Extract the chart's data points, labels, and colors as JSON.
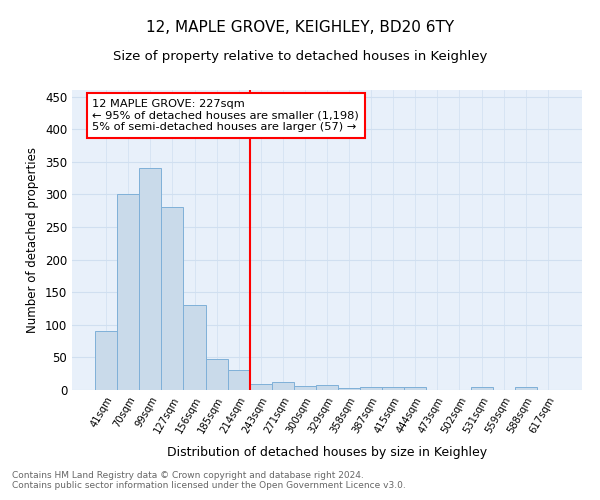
{
  "title": "12, MAPLE GROVE, KEIGHLEY, BD20 6TY",
  "subtitle": "Size of property relative to detached houses in Keighley",
  "xlabel": "Distribution of detached houses by size in Keighley",
  "ylabel": "Number of detached properties",
  "categories": [
    "41sqm",
    "70sqm",
    "99sqm",
    "127sqm",
    "156sqm",
    "185sqm",
    "214sqm",
    "243sqm",
    "271sqm",
    "300sqm",
    "329sqm",
    "358sqm",
    "387sqm",
    "415sqm",
    "444sqm",
    "473sqm",
    "502sqm",
    "531sqm",
    "559sqm",
    "588sqm",
    "617sqm"
  ],
  "values": [
    90,
    301,
    340,
    280,
    131,
    47,
    30,
    9,
    12,
    6,
    8,
    3,
    5,
    4,
    4,
    0,
    0,
    4,
    0,
    4,
    0
  ],
  "bar_color": "#c9daea",
  "bar_edge_color": "#7fb0d8",
  "grid_color": "#d0dff0",
  "bg_color": "#e8f0fa",
  "vline_x": 6.5,
  "vline_color": "red",
  "annotation_text": "12 MAPLE GROVE: 227sqm\n← 95% of detached houses are smaller (1,198)\n5% of semi-detached houses are larger (57) →",
  "annotation_box_color": "white",
  "annotation_box_edge_color": "red",
  "footer_text": "Contains HM Land Registry data © Crown copyright and database right 2024.\nContains public sector information licensed under the Open Government Licence v3.0.",
  "ylim": [
    0,
    460
  ],
  "yticks": [
    0,
    50,
    100,
    150,
    200,
    250,
    300,
    350,
    400,
    450
  ]
}
